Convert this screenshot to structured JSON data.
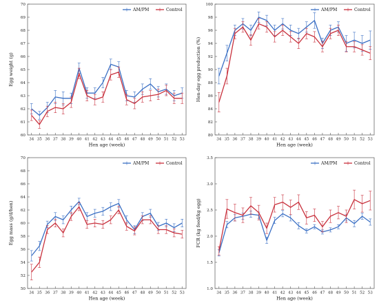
{
  "colors": {
    "amp": "#3a6fc4",
    "control": "#c8303c",
    "axis": "#555555"
  },
  "chart_data": [
    {
      "id": "egg-weight",
      "type": "line",
      "title": "",
      "xlabel": "Hen age (week)",
      "ylabel": "Egg weight (g)",
      "ylim": [
        60,
        70
      ],
      "yticks": [
        "60",
        "61",
        "62",
        "63",
        "64",
        "65",
        "66",
        "67",
        "68",
        "69",
        "70"
      ],
      "categories": [
        "34",
        "35",
        "36",
        "37",
        "38",
        "39",
        "40",
        "41",
        "42",
        "43",
        "44",
        "45",
        "46",
        "47",
        "48",
        "49",
        "50",
        "51",
        "52",
        "53"
      ],
      "legend": {
        "position": "top-right",
        "entries": [
          "AM/PM",
          "Control"
        ]
      },
      "series": [
        {
          "name": "AM/PM",
          "values": [
            62.0,
            61.5,
            62.1,
            62.9,
            62.8,
            62.8,
            65.1,
            63.2,
            63.2,
            64.0,
            65.4,
            65.2,
            63.0,
            62.9,
            63.5,
            63.9,
            63.3,
            63.5,
            63.0,
            63.2
          ],
          "errors": [
            0.4,
            0.3,
            0.4,
            0.5,
            0.5,
            0.4,
            0.4,
            0.4,
            0.4,
            0.4,
            0.4,
            0.4,
            0.4,
            0.4,
            0.4,
            0.4,
            0.4,
            0.4,
            0.4,
            0.4
          ]
        },
        {
          "name": "Control",
          "values": [
            61.5,
            60.8,
            61.8,
            62.1,
            62.0,
            62.5,
            64.7,
            63.0,
            62.7,
            62.9,
            64.6,
            64.8,
            62.7,
            62.4,
            62.9,
            63.0,
            63.1,
            63.4,
            62.8,
            62.8
          ],
          "errors": [
            0.4,
            0.3,
            0.4,
            0.4,
            0.4,
            0.4,
            0.4,
            0.4,
            0.4,
            0.4,
            0.4,
            0.4,
            0.4,
            0.4,
            0.4,
            0.4,
            0.4,
            0.4,
            0.4,
            0.4
          ]
        }
      ]
    },
    {
      "id": "hen-day-egg-production",
      "type": "line",
      "title": "",
      "xlabel": "Hen age (week)",
      "ylabel": "Hen-day egg production (%)",
      "ylim": [
        80,
        100
      ],
      "yticks": [
        "80",
        "82",
        "84",
        "86",
        "88",
        "90",
        "92",
        "94",
        "96",
        "98",
        "100"
      ],
      "categories": [
        "34",
        "35",
        "36",
        "37",
        "38",
        "39",
        "40",
        "41",
        "42",
        "43",
        "44",
        "45",
        "46",
        "47",
        "48",
        "49",
        "50",
        "51",
        "52",
        "53"
      ],
      "legend": {
        "position": "top-right",
        "entries": [
          "AM/PM",
          "Control"
        ]
      },
      "series": [
        {
          "name": "AM/PM",
          "values": [
            89.0,
            92.5,
            96.0,
            97.0,
            96.0,
            98.0,
            97.5,
            96.0,
            97.0,
            96.0,
            95.5,
            96.5,
            97.5,
            94.0,
            96.0,
            96.5,
            94.0,
            94.5,
            94.0,
            94.5
          ],
          "errors": [
            1.2,
            1.2,
            0.8,
            0.8,
            0.8,
            0.8,
            0.8,
            0.8,
            0.8,
            0.8,
            0.8,
            0.8,
            1.2,
            0.8,
            0.8,
            0.8,
            1.2,
            1.2,
            1.2,
            1.4
          ]
        },
        {
          "name": "Control",
          "values": [
            85.0,
            89.0,
            95.5,
            96.5,
            94.5,
            97.0,
            96.5,
            95.0,
            96.0,
            95.0,
            94.0,
            95.5,
            95.0,
            93.5,
            95.5,
            96.0,
            93.5,
            93.5,
            93.0,
            92.5
          ],
          "errors": [
            1.5,
            1.2,
            0.8,
            0.8,
            0.8,
            0.8,
            0.8,
            0.8,
            0.8,
            0.8,
            0.8,
            0.8,
            0.8,
            0.8,
            0.8,
            0.8,
            0.8,
            0.8,
            0.8,
            1.0
          ]
        }
      ]
    },
    {
      "id": "egg-mass",
      "type": "line",
      "title": "",
      "xlabel": "Hen age (week)",
      "ylabel": "Egg mass (g/d/hen)",
      "ylim": [
        50,
        70
      ],
      "yticks": [
        "50",
        "52",
        "54",
        "56",
        "58",
        "60",
        "62",
        "64",
        "66",
        "68",
        "70"
      ],
      "categories": [
        "34",
        "35",
        "36",
        "37",
        "38",
        "39",
        "40",
        "41",
        "42",
        "43",
        "44",
        "45",
        "46",
        "47",
        "48",
        "49",
        "50",
        "51",
        "52",
        "53"
      ],
      "legend": {
        "position": "top-right",
        "entries": [
          "AM/PM",
          "Control"
        ]
      },
      "series": [
        {
          "name": "AM/PM",
          "values": [
            55.0,
            56.5,
            59.8,
            61.0,
            60.5,
            62.0,
            63.3,
            61.0,
            61.5,
            61.8,
            62.5,
            63.0,
            60.5,
            59.0,
            61.0,
            61.5,
            59.5,
            60.0,
            59.3,
            60.0
          ],
          "errors": [
            0.8,
            0.7,
            0.5,
            0.6,
            0.6,
            0.6,
            0.5,
            0.6,
            0.6,
            0.6,
            0.6,
            0.6,
            0.6,
            0.6,
            0.6,
            0.6,
            0.6,
            0.6,
            0.6,
            0.6
          ]
        },
        {
          "name": "Control",
          "values": [
            52.5,
            54.0,
            59.0,
            60.0,
            58.5,
            61.0,
            62.5,
            59.8,
            60.0,
            59.8,
            60.5,
            62.0,
            59.5,
            58.8,
            60.5,
            60.5,
            59.0,
            59.0,
            58.5,
            58.3
          ],
          "errors": [
            1.2,
            0.8,
            0.6,
            0.6,
            0.6,
            0.6,
            0.6,
            0.6,
            0.6,
            0.6,
            0.6,
            0.6,
            0.6,
            0.6,
            0.6,
            0.6,
            0.6,
            0.6,
            0.6,
            0.6
          ]
        }
      ]
    },
    {
      "id": "fcr",
      "type": "line",
      "title": "",
      "xlabel": "Hen age (week)",
      "ylabel": "FCR (kg feed/kg egg)",
      "ylim": [
        1.0,
        3.5
      ],
      "yticks": [
        "1.0",
        "1.5",
        "2.0",
        "2.5",
        "3.0",
        "3.5"
      ],
      "categories": [
        "34",
        "35",
        "36",
        "37",
        "38",
        "39",
        "40",
        "41",
        "42",
        "43",
        "44",
        "45",
        "46",
        "47",
        "48",
        "49",
        "50",
        "51",
        "52",
        "53"
      ],
      "legend": {
        "position": "top-right",
        "entries": [
          "AM/PM",
          "Control"
        ]
      },
      "series": [
        {
          "name": "AM/PM",
          "values": [
            1.68,
            2.22,
            2.35,
            2.38,
            2.42,
            2.4,
            1.92,
            2.3,
            2.43,
            2.35,
            2.2,
            2.1,
            2.18,
            2.08,
            2.12,
            2.18,
            2.35,
            2.24,
            2.38,
            2.27
          ],
          "errors": [
            0.06,
            0.06,
            0.06,
            0.06,
            0.06,
            0.06,
            0.06,
            0.06,
            0.06,
            0.06,
            0.06,
            0.04,
            0.04,
            0.04,
            0.04,
            0.04,
            0.06,
            0.06,
            0.06,
            0.06
          ]
        },
        {
          "name": "Control",
          "values": [
            1.72,
            2.52,
            2.45,
            2.4,
            2.58,
            2.45,
            2.15,
            2.6,
            2.65,
            2.55,
            2.65,
            2.35,
            2.4,
            2.18,
            2.38,
            2.45,
            2.38,
            2.7,
            2.62,
            2.68
          ],
          "errors": [
            0.08,
            0.18,
            0.16,
            0.14,
            0.16,
            0.14,
            0.1,
            0.14,
            0.14,
            0.14,
            0.14,
            0.12,
            0.12,
            0.1,
            0.12,
            0.12,
            0.12,
            0.18,
            0.16,
            0.18
          ]
        }
      ]
    }
  ]
}
